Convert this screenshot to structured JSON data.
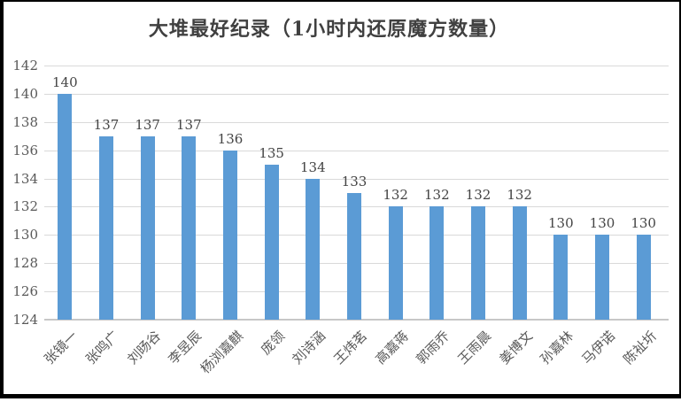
{
  "title": "大堆最好纪录（1小时内还原魔方数量）",
  "colors": {
    "bar": "#5b9bd5",
    "gridline": "#d9d9d9",
    "axis_line": "#c7c7c7",
    "tick_text": "#595959",
    "value_text": "#444444",
    "title_text": "#404040",
    "frame": "#000000"
  },
  "chart_data": {
    "type": "bar",
    "title": "大堆最好纪录（1小时内还原魔方数量）",
    "categories": [
      "张镜一",
      "张鸣广",
      "刘旸谷",
      "李昱辰",
      "杨浏嘉麒",
      "庞领",
      "刘诗涵",
      "王炜茗",
      "高嘉蒋",
      "郭雨乔",
      "王雨晨",
      "姜博文",
      "孙嘉林",
      "马伊诺",
      "陈祉圻"
    ],
    "values": [
      140,
      137,
      137,
      137,
      136,
      135,
      134,
      133,
      132,
      132,
      132,
      132,
      130,
      130,
      130
    ],
    "data_labels": [
      140,
      137,
      137,
      137,
      136,
      135,
      134,
      133,
      132,
      132,
      132,
      132,
      130,
      130,
      130
    ],
    "xlabel": "",
    "ylabel": "",
    "ylim": [
      124,
      142
    ],
    "ytick_step": 2,
    "yticks": [
      124,
      126,
      128,
      130,
      132,
      134,
      136,
      138,
      140,
      142
    ],
    "grid": true,
    "legend": false,
    "x_label_rotation_deg": 45,
    "bar_color": "#5b9bd5"
  }
}
